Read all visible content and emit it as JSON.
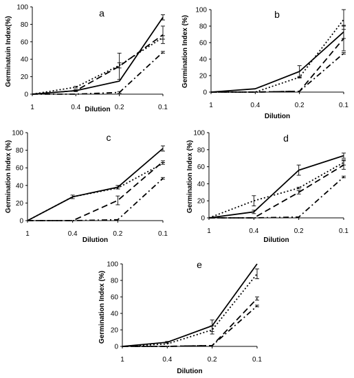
{
  "figure": {
    "panels": [
      {
        "letter": "a",
        "ylabel": "Germinatuin Index(%)",
        "xlabel": "Dilution"
      },
      {
        "letter": "b",
        "ylabel": "Germination Index (%)",
        "xlabel": "Dilution"
      },
      {
        "letter": "c",
        "ylabel": "Germination Index (%)",
        "xlabel": "Dilution"
      },
      {
        "letter": "d",
        "ylabel": "Germination Index (%)",
        "xlabel": "Dilution"
      },
      {
        "letter": "e",
        "ylabel": "Germination Index (%)",
        "xlabel": "Dilution"
      }
    ]
  },
  "chart_data": [
    {
      "type": "line",
      "panel": "a",
      "title": "a",
      "xlabel": "Dilution",
      "ylabel": "Germinatuin Index(%)",
      "categories": [
        "1",
        "0.4",
        "0.2",
        "0.1"
      ],
      "ylim": [
        0,
        100
      ],
      "yticks": [
        0,
        20,
        40,
        60,
        80,
        100
      ],
      "grid": false,
      "legend": "none",
      "series": [
        {
          "style": "solid",
          "values": [
            0,
            4,
            15,
            88
          ],
          "errors": [
            0,
            1,
            0,
            3
          ]
        },
        {
          "style": "dashed",
          "values": [
            0,
            4,
            32,
            68
          ],
          "errors": [
            0,
            1,
            15,
            10
          ]
        },
        {
          "style": "dotted",
          "values": [
            0,
            8,
            33,
            65
          ],
          "errors": [
            0,
            1,
            3,
            2
          ]
        },
        {
          "style": "dashdot",
          "values": [
            0,
            0,
            2,
            48
          ],
          "errors": [
            0,
            0,
            1,
            1
          ]
        }
      ]
    },
    {
      "type": "line",
      "panel": "b",
      "title": "b",
      "xlabel": "Dilution",
      "ylabel": "Germination Index (%)",
      "categories": [
        "1",
        "0.4",
        "0.2",
        "0.1"
      ],
      "ylim": [
        0,
        100
      ],
      "yticks": [
        0,
        20,
        40,
        60,
        80,
        100
      ],
      "grid": false,
      "legend": "none",
      "series": [
        {
          "style": "solid",
          "values": [
            0,
            4,
            25,
            73
          ],
          "errors": [
            0,
            0,
            7,
            8
          ]
        },
        {
          "style": "dashed",
          "values": [
            0,
            0,
            1,
            65
          ],
          "errors": [
            0,
            0,
            0,
            15
          ]
        },
        {
          "style": "dotted",
          "values": [
            0,
            0,
            18,
            88
          ],
          "errors": [
            0,
            0,
            1,
            12
          ]
        },
        {
          "style": "dashdot",
          "values": [
            0,
            0,
            1,
            47
          ],
          "errors": [
            0,
            0,
            0,
            1
          ]
        }
      ]
    },
    {
      "type": "line",
      "panel": "c",
      "title": "c",
      "xlabel": "Dilution",
      "ylabel": "Germination Index (%)",
      "categories": [
        "1",
        "0.4",
        "0.2",
        "0.1"
      ],
      "ylim": [
        0,
        100
      ],
      "yticks": [
        0,
        20,
        40,
        60,
        80,
        100
      ],
      "grid": false,
      "legend": "none",
      "series": [
        {
          "style": "solid",
          "values": [
            0,
            27,
            38,
            82
          ],
          "errors": [
            0,
            2,
            2,
            3
          ]
        },
        {
          "style": "dashed",
          "values": [
            0,
            0,
            23,
            67
          ],
          "errors": [
            0,
            0,
            5,
            1
          ]
        },
        {
          "style": "dotted",
          "values": [
            0,
            27,
            37,
            65
          ],
          "errors": [
            0,
            0,
            1,
            1
          ]
        },
        {
          "style": "dashdot",
          "values": [
            0,
            0,
            1,
            48
          ],
          "errors": [
            0,
            0,
            0,
            1
          ]
        }
      ]
    },
    {
      "type": "line",
      "panel": "d",
      "title": "d",
      "xlabel": "Dilution",
      "ylabel": "Germination Index (%)",
      "categories": [
        "1",
        "0.4",
        "0.2",
        "0.1"
      ],
      "ylim": [
        0,
        100
      ],
      "yticks": [
        0,
        20,
        40,
        60,
        80,
        100
      ],
      "grid": false,
      "legend": "none",
      "series": [
        {
          "style": "solid",
          "values": [
            0,
            7,
            56,
            73
          ],
          "errors": [
            0,
            2,
            6,
            3
          ]
        },
        {
          "style": "dashed",
          "values": [
            0,
            0,
            30,
            62
          ],
          "errors": [
            0,
            0,
            2,
            5
          ]
        },
        {
          "style": "dotted",
          "values": [
            0,
            20,
            35,
            65
          ],
          "errors": [
            0,
            6,
            1,
            3
          ]
        },
        {
          "style": "dashdot",
          "values": [
            0,
            0,
            1,
            48
          ],
          "errors": [
            0,
            0,
            0,
            1
          ]
        }
      ]
    },
    {
      "type": "line",
      "panel": "e",
      "title": "e",
      "xlabel": "Dilution",
      "ylabel": "Germination Index (%)",
      "categories": [
        "1",
        "0.4",
        "0.2",
        "0.1"
      ],
      "ylim": [
        0,
        100
      ],
      "yticks": [
        0,
        20,
        40,
        60,
        80,
        100
      ],
      "grid": false,
      "legend": "none",
      "series": [
        {
          "style": "solid",
          "values": [
            0,
            5,
            25,
            100
          ],
          "errors": [
            0,
            1,
            7,
            0
          ]
        },
        {
          "style": "dashed",
          "values": [
            0,
            0,
            1,
            58
          ],
          "errors": [
            0,
            0,
            0,
            2
          ]
        },
        {
          "style": "dotted",
          "values": [
            0,
            3,
            20,
            88
          ],
          "errors": [
            0,
            0,
            5,
            6
          ]
        },
        {
          "style": "dashdot",
          "values": [
            0,
            0,
            1,
            49
          ],
          "errors": [
            0,
            0,
            0,
            1
          ]
        }
      ]
    }
  ]
}
